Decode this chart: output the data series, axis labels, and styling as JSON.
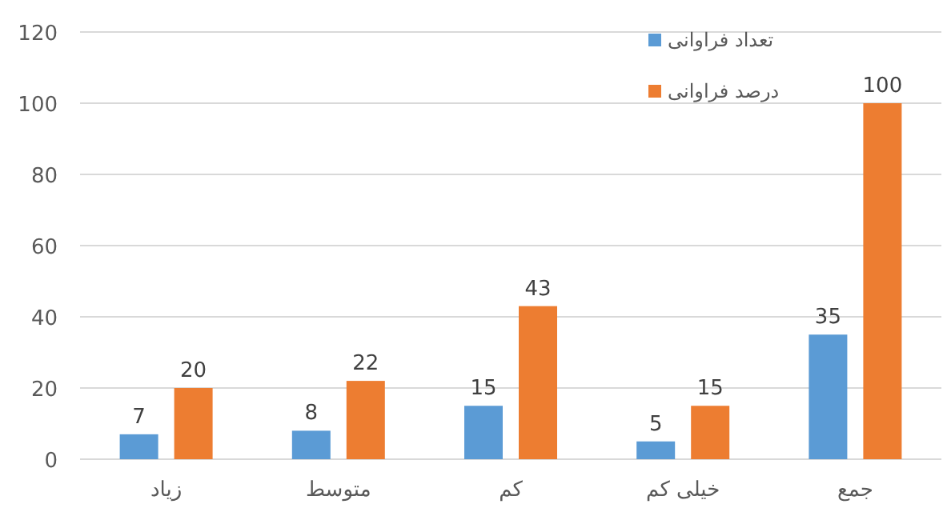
{
  "chart_data": {
    "type": "bar",
    "categories": [
      "زیاد",
      "متوسط",
      "کم",
      "خیلی کم",
      "جمع"
    ],
    "series": [
      {
        "name": "تعداد فراوانی",
        "color": "#5b9bd5",
        "values": [
          7,
          8,
          15,
          5,
          35
        ]
      },
      {
        "name": "درصد فراوانی",
        "color": "#ed7d31",
        "values": [
          20,
          22,
          43,
          15,
          100
        ]
      }
    ],
    "ylim": [
      0,
      120
    ],
    "yticks": [
      0,
      20,
      40,
      60,
      80,
      100,
      120
    ],
    "grid": "y",
    "legend": "top right",
    "data_labels": true
  }
}
